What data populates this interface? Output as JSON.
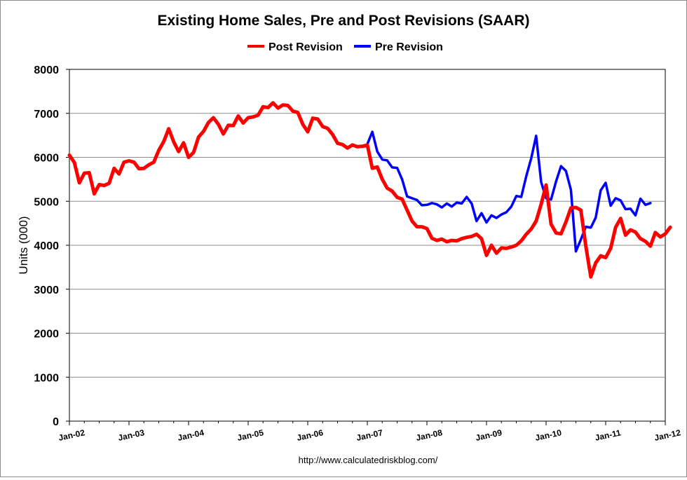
{
  "chart_data": {
    "type": "line",
    "title": "Existing Home Sales, Pre and Post Revisions (SAAR)",
    "ylabel": "Units (000)",
    "xlabel": "",
    "ylim": [
      0,
      8000
    ],
    "yticks": [
      "0",
      "1000",
      "2000",
      "3000",
      "4000",
      "5000",
      "6000",
      "7000",
      "8000"
    ],
    "xticks": [
      "Jan-02",
      "Jan-03",
      "Jan-04",
      "Jan-05",
      "Jan-06",
      "Jan-07",
      "Jan-08",
      "Jan-09",
      "Jan-10",
      "Jan-11",
      "Jan-12"
    ],
    "grid": true,
    "legend_position": "top-center",
    "source": "http://www.calculatedriskblog.com/",
    "series": [
      {
        "name": "Post Revision",
        "color": "#ff0000",
        "start": "2002-01",
        "values": [
          6050,
          5880,
          5420,
          5640,
          5650,
          5170,
          5380,
          5360,
          5410,
          5750,
          5620,
          5890,
          5920,
          5890,
          5740,
          5750,
          5830,
          5890,
          6160,
          6360,
          6650,
          6350,
          6130,
          6330,
          6000,
          6110,
          6460,
          6590,
          6790,
          6900,
          6750,
          6530,
          6730,
          6720,
          6940,
          6780,
          6900,
          6920,
          6960,
          7150,
          7130,
          7240,
          7120,
          7190,
          7180,
          7050,
          7020,
          6750,
          6580,
          6890,
          6870,
          6700,
          6660,
          6520,
          6320,
          6290,
          6210,
          6280,
          6240,
          6250,
          6280,
          5750,
          5780,
          5500,
          5300,
          5230,
          5090,
          5050,
          4800,
          4550,
          4420,
          4420,
          4380,
          4160,
          4110,
          4140,
          4080,
          4110,
          4100,
          4150,
          4180,
          4200,
          4250,
          4150,
          3770,
          4000,
          3820,
          3940,
          3930,
          3960,
          4000,
          4100,
          4250,
          4370,
          4550,
          4930,
          5370,
          4480,
          4280,
          4260,
          4530,
          4850,
          4860,
          4800,
          3980,
          3280,
          3600,
          3760,
          3720,
          3930,
          4410,
          4610,
          4230,
          4350,
          4300,
          4150,
          4090,
          3980,
          4290,
          4190,
          4260,
          4410
        ]
      },
      {
        "name": "Pre Revision",
        "color": "#0000ff",
        "start": "2007-01",
        "values": [
          6300,
          6580,
          6130,
          5950,
          5930,
          5770,
          5760,
          5500,
          5110,
          5070,
          5030,
          4910,
          4920,
          4960,
          4930,
          4860,
          4950,
          4880,
          4970,
          4950,
          5100,
          4950,
          4550,
          4730,
          4520,
          4680,
          4620,
          4700,
          4750,
          4880,
          5120,
          5100,
          5570,
          5980,
          6490,
          5440,
          5070,
          5040,
          5450,
          5800,
          5690,
          5260,
          3860,
          4130,
          4420,
          4400,
          4630,
          5250,
          5420,
          4900,
          5070,
          5020,
          4820,
          4830,
          4680,
          5060,
          4920,
          4960
        ]
      }
    ]
  }
}
